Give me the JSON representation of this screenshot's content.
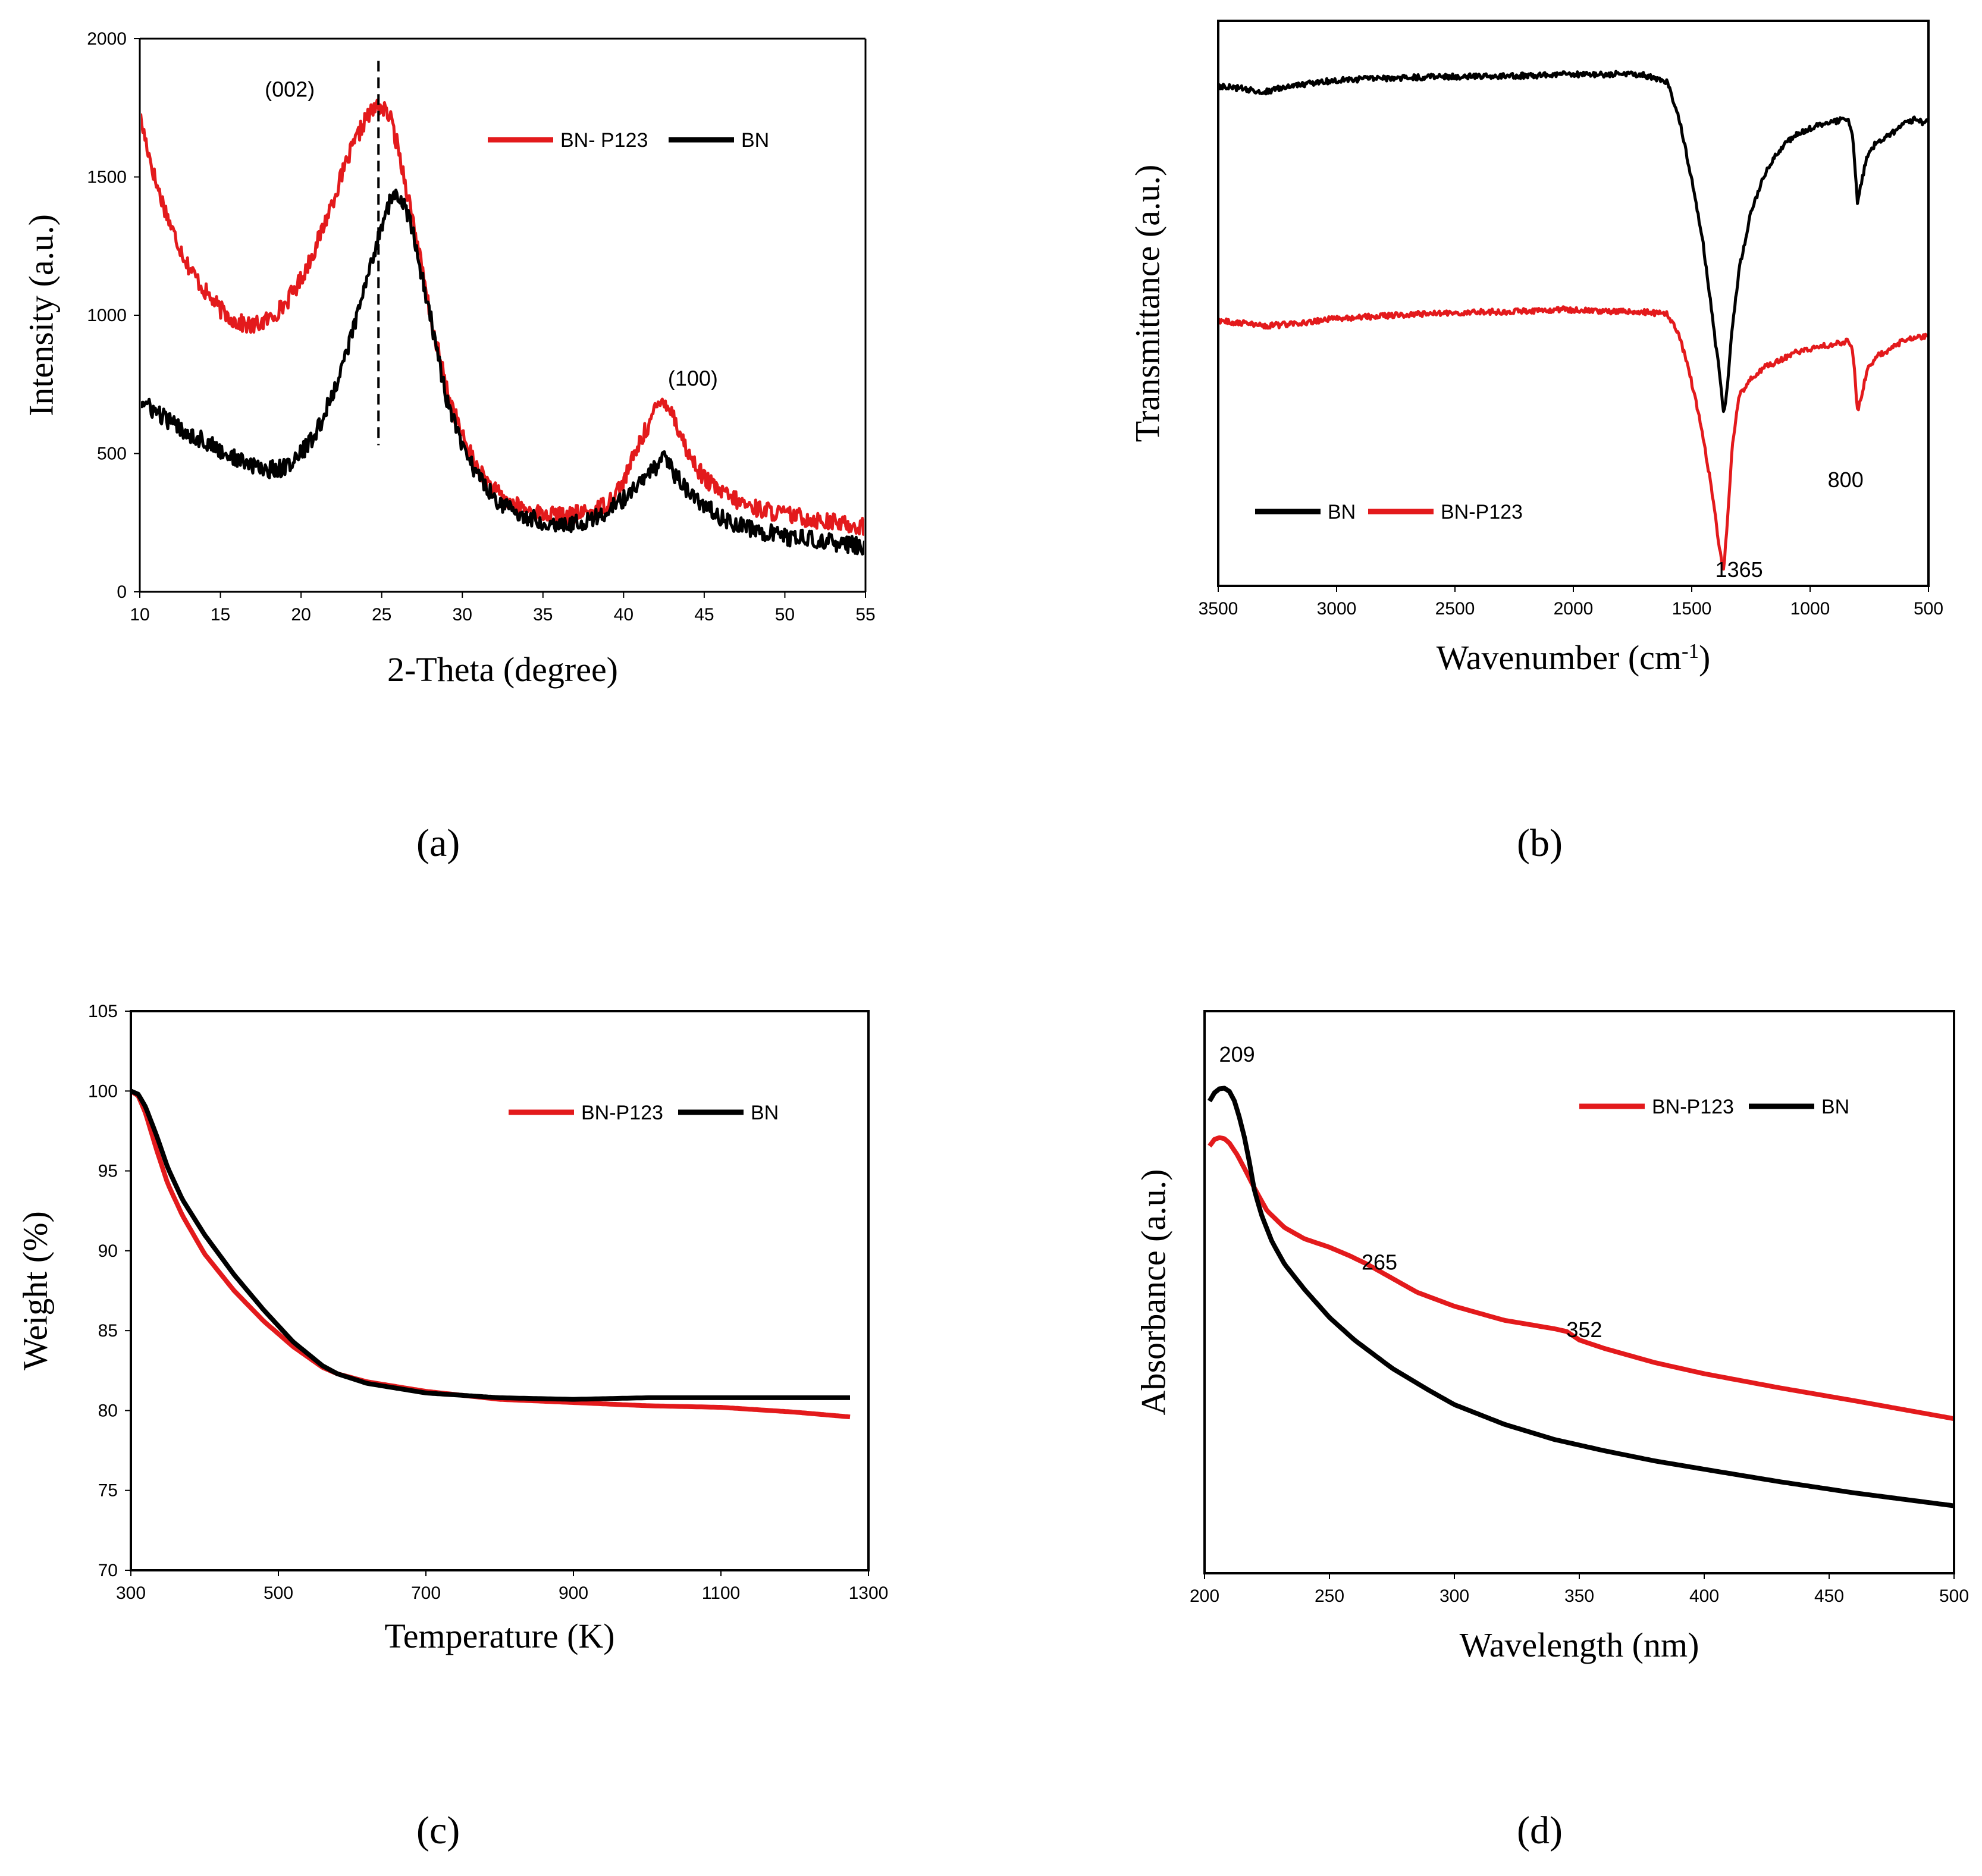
{
  "colors": {
    "red": "#e31a1c",
    "black": "#000000"
  },
  "panel_labels": [
    "(a)",
    "(b)",
    "(c)",
    "(d)"
  ],
  "chart_data": [
    {
      "id": "a",
      "type": "line",
      "title": "",
      "xlabel": "2-Theta (degree)",
      "ylabel": "Intensity (a.u.)",
      "xlim": [
        10,
        55
      ],
      "ylim": [
        0,
        2000
      ],
      "xticks": [
        10,
        15,
        20,
        25,
        30,
        35,
        40,
        45,
        50,
        55
      ],
      "yticks": [
        0,
        500,
        1000,
        1500,
        2000
      ],
      "show_y_ticks": true,
      "noise": 32,
      "legend": {
        "position": "top-right",
        "items": [
          {
            "name": "BN- P123",
            "color": "red"
          },
          {
            "name": "BN",
            "color": "black"
          }
        ]
      },
      "annotations": [
        {
          "text": "(002)",
          "x": 19.3,
          "y": 1790
        },
        {
          "text": "(100)",
          "x": 44.3,
          "y": 745
        }
      ],
      "vline": {
        "x": 24.8,
        "y0": 530,
        "y1": 1920
      },
      "series": [
        {
          "name": "BN- P123",
          "color": "red",
          "x": [
            10,
            11,
            12,
            13,
            14,
            15,
            16,
            17,
            18,
            19,
            20,
            21,
            22,
            23,
            24,
            24.8,
            25.5,
            26,
            27,
            28,
            29,
            30,
            31,
            32,
            33,
            34,
            35,
            36,
            37,
            38,
            39,
            40,
            41,
            42,
            42.5,
            43,
            44,
            45,
            46,
            47,
            48,
            50,
            52,
            55
          ],
          "y": [
            1720,
            1480,
            1310,
            1180,
            1090,
            1020,
            975,
            960,
            985,
            1040,
            1130,
            1260,
            1420,
            1580,
            1710,
            1760,
            1720,
            1610,
            1330,
            1000,
            740,
            560,
            440,
            365,
            320,
            295,
            280,
            275,
            280,
            290,
            320,
            400,
            540,
            660,
            700,
            650,
            500,
            410,
            360,
            330,
            305,
            280,
            260,
            235
          ]
        },
        {
          "name": "BN",
          "color": "black",
          "x": [
            10,
            11,
            12,
            13,
            14,
            15,
            16,
            17,
            18,
            19,
            20,
            21,
            22,
            23,
            24,
            25,
            25.7,
            26.5,
            27,
            28,
            29,
            30,
            31,
            32,
            33,
            34,
            35,
            36,
            37,
            38,
            39,
            40,
            41,
            42,
            42.6,
            43,
            44,
            45,
            46,
            47,
            48,
            50,
            52,
            55
          ],
          "y": [
            690,
            650,
            610,
            575,
            545,
            510,
            480,
            455,
            440,
            450,
            500,
            580,
            720,
            900,
            1110,
            1330,
            1440,
            1390,
            1280,
            1000,
            700,
            520,
            420,
            340,
            295,
            270,
            255,
            245,
            250,
            260,
            290,
            335,
            390,
            450,
            480,
            440,
            360,
            310,
            270,
            245,
            225,
            200,
            185,
            165
          ]
        }
      ]
    },
    {
      "id": "b",
      "type": "line",
      "title": "",
      "xlabel": "Wavenumber (cm",
      "xlabel_sup": "-1",
      "xlabel_close": ")",
      "ylabel": "Transmittance (a.u.)",
      "xlim": [
        3500,
        500
      ],
      "ylim": [
        0,
        100
      ],
      "xticks": [
        3500,
        3000,
        2500,
        2000,
        1500,
        1000,
        500
      ],
      "yticks": [],
      "show_y_ticks": false,
      "noise": 0.5,
      "legend": {
        "position": "bottom-left",
        "items": [
          {
            "name": "BN",
            "color": "black"
          },
          {
            "name": "BN-P123",
            "color": "red"
          }
        ]
      },
      "annotations": [
        {
          "text": "1365",
          "x": 1300,
          "y": 1.6
        },
        {
          "text": "800",
          "x": 850,
          "y": 17.5
        }
      ],
      "series": [
        {
          "name": "BN",
          "color": "black",
          "x": [
            3500,
            3400,
            3300,
            3200,
            3000,
            2800,
            2600,
            2400,
            2200,
            2100,
            2050,
            2000,
            1950,
            1900,
            1800,
            1700,
            1600,
            1550,
            1500,
            1450,
            1420,
            1400,
            1380,
            1365,
            1350,
            1330,
            1300,
            1250,
            1200,
            1150,
            1100,
            1050,
            1000,
            950,
            900,
            860,
            840,
            820,
            800,
            780,
            760,
            720,
            680,
            640,
            600,
            560,
            520,
            500
          ],
          "y": [
            88.5,
            88,
            87.5,
            88.5,
            89.5,
            89.8,
            90.1,
            90.2,
            90.3,
            90.4,
            90.5,
            90.5,
            90.6,
            90.5,
            90.6,
            90.4,
            89,
            82,
            72,
            60,
            50,
            43,
            37,
            30.5,
            35,
            45,
            56,
            66,
            72,
            76,
            78.5,
            80,
            81,
            81.8,
            82.2,
            82.5,
            82.6,
            80,
            68,
            72,
            76,
            78.5,
            79.5,
            80.5,
            82,
            82.5,
            82,
            82.5
          ]
        },
        {
          "name": "BN-P123",
          "color": "red",
          "x": [
            3500,
            3400,
            3300,
            3200,
            3000,
            2800,
            2600,
            2400,
            2200,
            2100,
            2050,
            2000,
            1950,
            1900,
            1800,
            1700,
            1600,
            1550,
            1500,
            1450,
            1420,
            1400,
            1380,
            1365,
            1350,
            1330,
            1300,
            1250,
            1200,
            1150,
            1100,
            1050,
            1000,
            950,
            900,
            860,
            840,
            820,
            800,
            780,
            760,
            720,
            680,
            640,
            600,
            560,
            520,
            500
          ],
          "y": [
            47,
            46.5,
            46,
            46.3,
            47.3,
            47.8,
            48.2,
            48.5,
            48.6,
            48.8,
            49,
            48.8,
            48.9,
            48.6,
            48.6,
            48.5,
            48,
            44,
            36,
            26,
            18,
            12,
            6,
            3,
            11,
            24,
            33.5,
            36.5,
            38.5,
            39.5,
            40.5,
            41.5,
            42,
            42.4,
            42.8,
            43.2,
            43.4,
            42,
            31,
            34,
            38,
            40.5,
            41.5,
            42.5,
            43.5,
            44,
            44.2,
            44.5
          ]
        }
      ]
    },
    {
      "id": "c",
      "type": "line",
      "title": "",
      "xlabel": "Temperature (K)",
      "ylabel": "Weight (%)",
      "xlim": [
        300,
        1300
      ],
      "ylim": [
        70,
        105
      ],
      "xticks": [
        300,
        500,
        700,
        900,
        1100,
        1300
      ],
      "yticks": [
        70,
        75,
        80,
        85,
        90,
        95,
        100,
        105
      ],
      "show_y_ticks": true,
      "noise": 0,
      "legend": {
        "position": "top-right",
        "items": [
          {
            "name": "BN-P123",
            "color": "red"
          },
          {
            "name": "BN",
            "color": "black"
          }
        ]
      },
      "annotations": [],
      "series": [
        {
          "name": "BN-P123",
          "color": "red",
          "x": [
            300,
            310,
            320,
            335,
            350,
            370,
            400,
            440,
            480,
            520,
            560,
            580,
            620,
            700,
            800,
            900,
            1000,
            1100,
            1200,
            1275
          ],
          "y": [
            100,
            99.7,
            98.6,
            96.3,
            94.2,
            92.2,
            89.8,
            87.5,
            85.6,
            84,
            82.7,
            82.3,
            81.8,
            81.2,
            80.7,
            80.5,
            80.3,
            80.2,
            79.9,
            79.6
          ]
        },
        {
          "name": "BN",
          "color": "black",
          "x": [
            300,
            310,
            320,
            335,
            350,
            370,
            400,
            440,
            480,
            520,
            560,
            580,
            620,
            700,
            800,
            900,
            1000,
            1100,
            1200,
            1275
          ],
          "y": [
            100,
            99.8,
            99,
            97.2,
            95.2,
            93.2,
            91,
            88.5,
            86.3,
            84.3,
            82.8,
            82.3,
            81.7,
            81.1,
            80.8,
            80.7,
            80.8,
            80.8,
            80.8,
            80.8
          ]
        }
      ]
    },
    {
      "id": "d",
      "type": "line",
      "title": "",
      "xlabel": "Wavelength (nm)",
      "ylabel": "Absorbance (a.u.)",
      "xlim": [
        200,
        500
      ],
      "ylim": [
        0,
        100
      ],
      "xticks": [
        200,
        250,
        300,
        350,
        400,
        450,
        500
      ],
      "yticks": [],
      "show_y_ticks": false,
      "noise": 0,
      "legend": {
        "position": "top-right",
        "items": [
          {
            "name": "BN-P123",
            "color": "red"
          },
          {
            "name": "BN",
            "color": "black"
          }
        ]
      },
      "annotations": [
        {
          "text": "209",
          "x": 213,
          "y": 91
        },
        {
          "text": "265",
          "x": 270,
          "y": 54
        },
        {
          "text": "352",
          "x": 352,
          "y": 42
        }
      ],
      "series": [
        {
          "name": "BN-P123",
          "color": "red",
          "x": [
            202,
            204,
            206,
            208,
            210,
            213,
            216,
            220,
            225,
            232,
            240,
            250,
            258,
            265,
            275,
            285,
            300,
            320,
            340,
            345,
            350,
            360,
            380,
            400,
            430,
            460,
            500
          ],
          "y": [
            76,
            77.2,
            77.5,
            77.3,
            76.5,
            74.5,
            72,
            68.5,
            64.5,
            61.5,
            59.5,
            58,
            56.5,
            55,
            52.5,
            50,
            47.5,
            45,
            43.5,
            43,
            41.5,
            40,
            37.5,
            35.5,
            33,
            30.7,
            27.5
          ]
        },
        {
          "name": "BN",
          "color": "black",
          "x": [
            202,
            204,
            206,
            208,
            210,
            212,
            214,
            216,
            218,
            220,
            223,
            227,
            232,
            240,
            250,
            260,
            275,
            290,
            300,
            320,
            340,
            360,
            380,
            400,
            430,
            460,
            500
          ],
          "y": [
            84,
            85.5,
            86.2,
            86.3,
            85.7,
            84,
            81,
            77.5,
            73,
            68,
            63.5,
            59,
            55,
            50.5,
            45.5,
            41.5,
            36.5,
            32.5,
            30,
            26.5,
            23.8,
            21.8,
            20,
            18.5,
            16.3,
            14.3,
            12
          ]
        }
      ]
    }
  ]
}
